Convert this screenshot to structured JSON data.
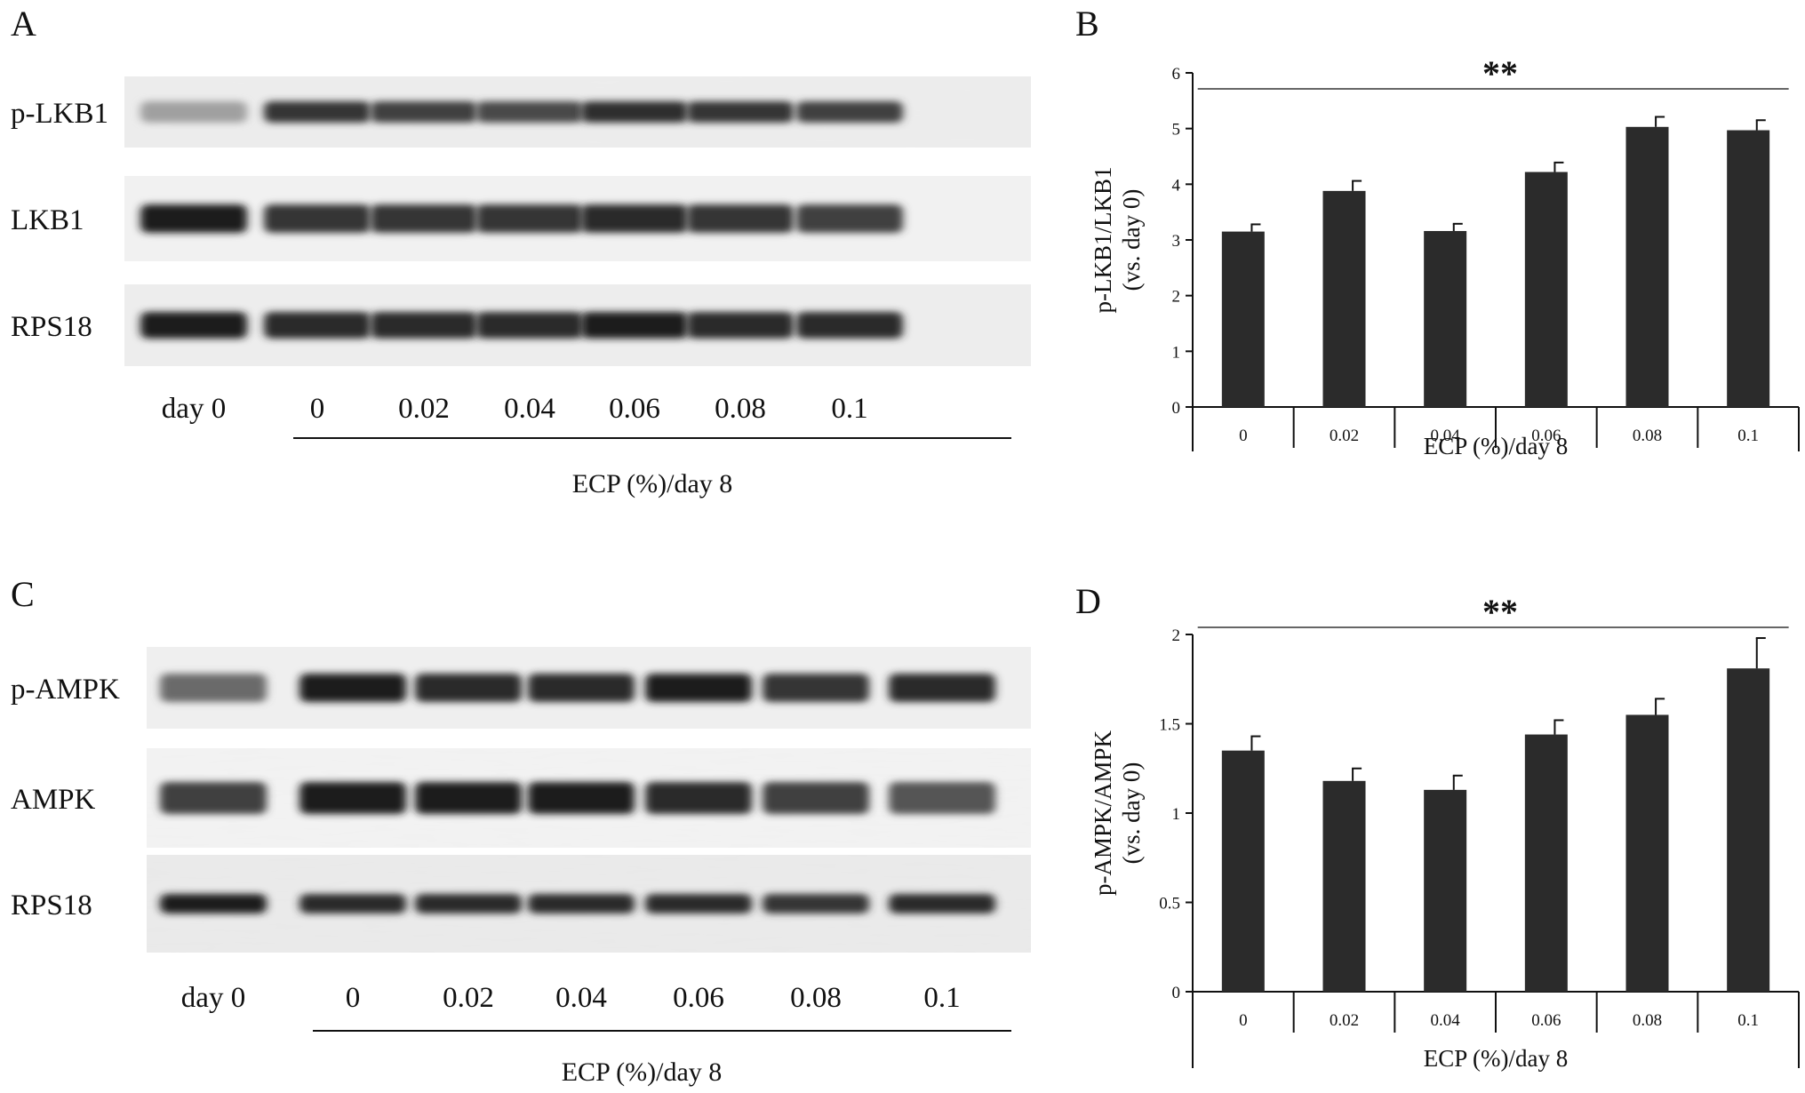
{
  "panels": {
    "A": "A",
    "B": "B",
    "C": "C",
    "D": "D"
  },
  "blot_top": {
    "rows": [
      {
        "label": "p-LKB1",
        "intensities": [
          0.35,
          0.85,
          0.8,
          0.75,
          0.88,
          0.85,
          0.8
        ]
      },
      {
        "label": "LKB1",
        "intensities": [
          0.95,
          0.85,
          0.85,
          0.85,
          0.9,
          0.85,
          0.8
        ]
      },
      {
        "label": "RPS18",
        "intensities": [
          0.95,
          0.9,
          0.9,
          0.9,
          0.95,
          0.9,
          0.9
        ]
      }
    ],
    "lanes": [
      "day 0",
      "0",
      "0.02",
      "0.04",
      "0.06",
      "0.08",
      "0.1"
    ],
    "group_label": "ECP (%)/day 8"
  },
  "blot_bottom": {
    "rows": [
      {
        "label": "p-AMPK",
        "intensities": [
          0.6,
          0.95,
          0.9,
          0.9,
          0.95,
          0.85,
          0.9
        ]
      },
      {
        "label": "AMPK",
        "intensities": [
          0.8,
          0.95,
          0.95,
          0.95,
          0.9,
          0.8,
          0.7
        ]
      },
      {
        "label": "RPS18",
        "intensities": [
          0.95,
          0.9,
          0.9,
          0.9,
          0.9,
          0.85,
          0.9
        ]
      }
    ],
    "lanes": [
      "day 0",
      "0",
      "0.02",
      "0.04",
      "0.06",
      "0.08",
      "0.1"
    ],
    "group_label": "ECP (%)/day 8"
  },
  "chart_data": [
    {
      "type": "bar",
      "panel": "B",
      "categories": [
        "0",
        "0.02",
        "0.04",
        "0.06",
        "0.08",
        "0.1"
      ],
      "values": [
        3.15,
        3.88,
        3.16,
        4.22,
        5.03,
        4.97
      ],
      "errors": [
        0.13,
        0.18,
        0.13,
        0.17,
        0.18,
        0.18
      ],
      "ylabel": [
        "p-LKB1/LKB1",
        "(vs. day 0)"
      ],
      "xlabel": "ECP (%)/day 8",
      "ylim": [
        0,
        6
      ],
      "yticks": [
        0,
        1,
        2,
        3,
        4,
        5,
        6
      ],
      "significance": "**",
      "bar_color": "#2b2b2b",
      "grid": false
    },
    {
      "type": "bar",
      "panel": "D",
      "categories": [
        "0",
        "0.02",
        "0.04",
        "0.06",
        "0.08",
        "0.1"
      ],
      "values": [
        1.35,
        1.18,
        1.13,
        1.44,
        1.55,
        1.81
      ],
      "errors": [
        0.08,
        0.07,
        0.08,
        0.08,
        0.09,
        0.17
      ],
      "ylabel": [
        "p-AMPK/AMPK",
        "(vs. day 0)"
      ],
      "xlabel": "ECP (%)/day 8",
      "ylim": [
        0,
        2
      ],
      "yticks": [
        0,
        0.5,
        1,
        1.5,
        2
      ],
      "significance": "**",
      "bar_color": "#2b2b2b",
      "grid": false
    }
  ]
}
